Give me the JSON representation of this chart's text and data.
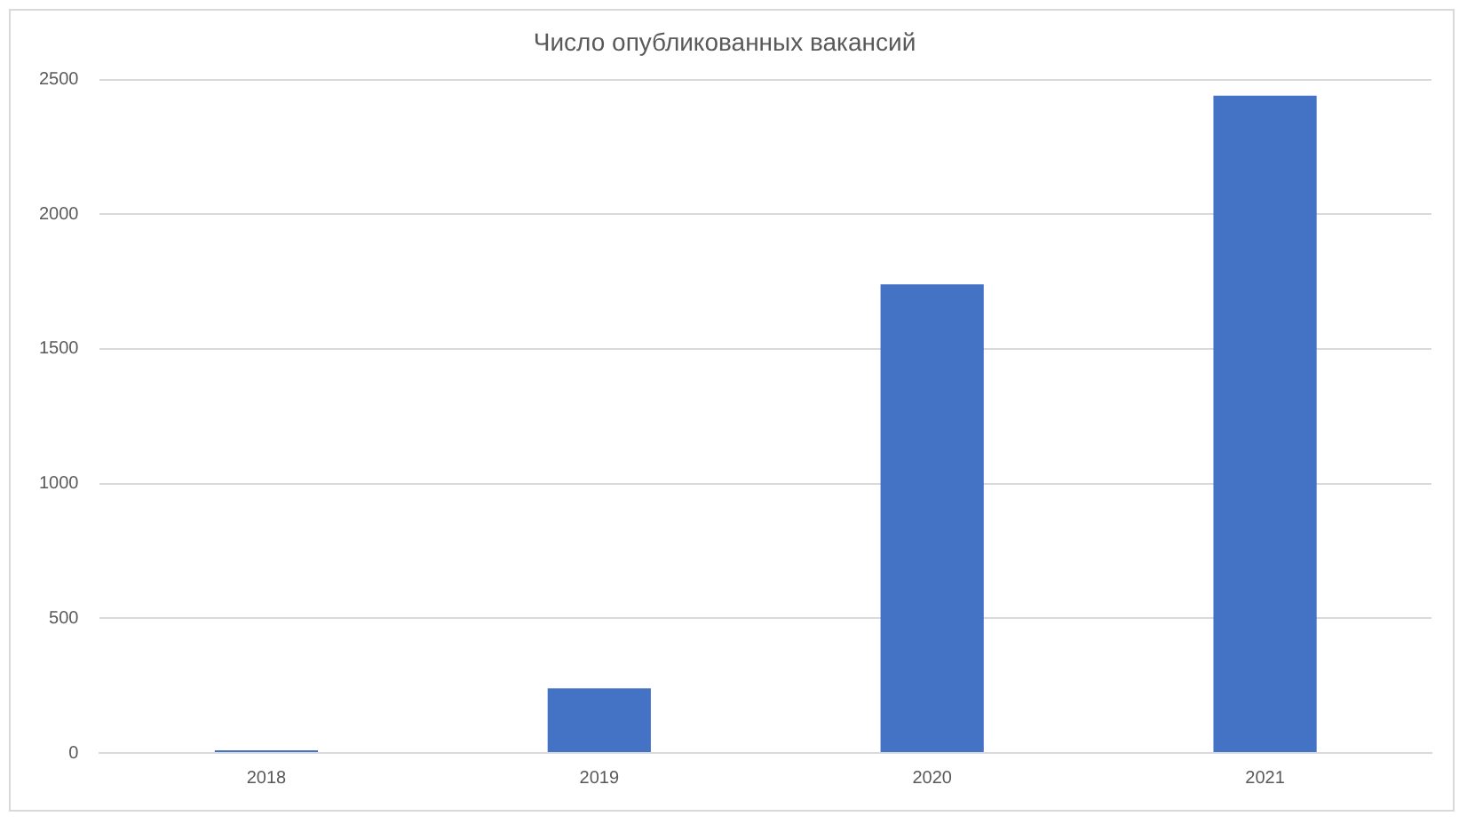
{
  "chart_data": {
    "type": "bar",
    "title": "Число опубликованных вакансий",
    "categories": [
      "2018",
      "2019",
      "2020",
      "2021"
    ],
    "values": [
      10,
      240,
      1740,
      2440
    ],
    "color": "#4472c4",
    "ylim": [
      0,
      2500
    ],
    "yticks": [
      0,
      500,
      1000,
      1500,
      2000,
      2500
    ],
    "grid": "y"
  }
}
